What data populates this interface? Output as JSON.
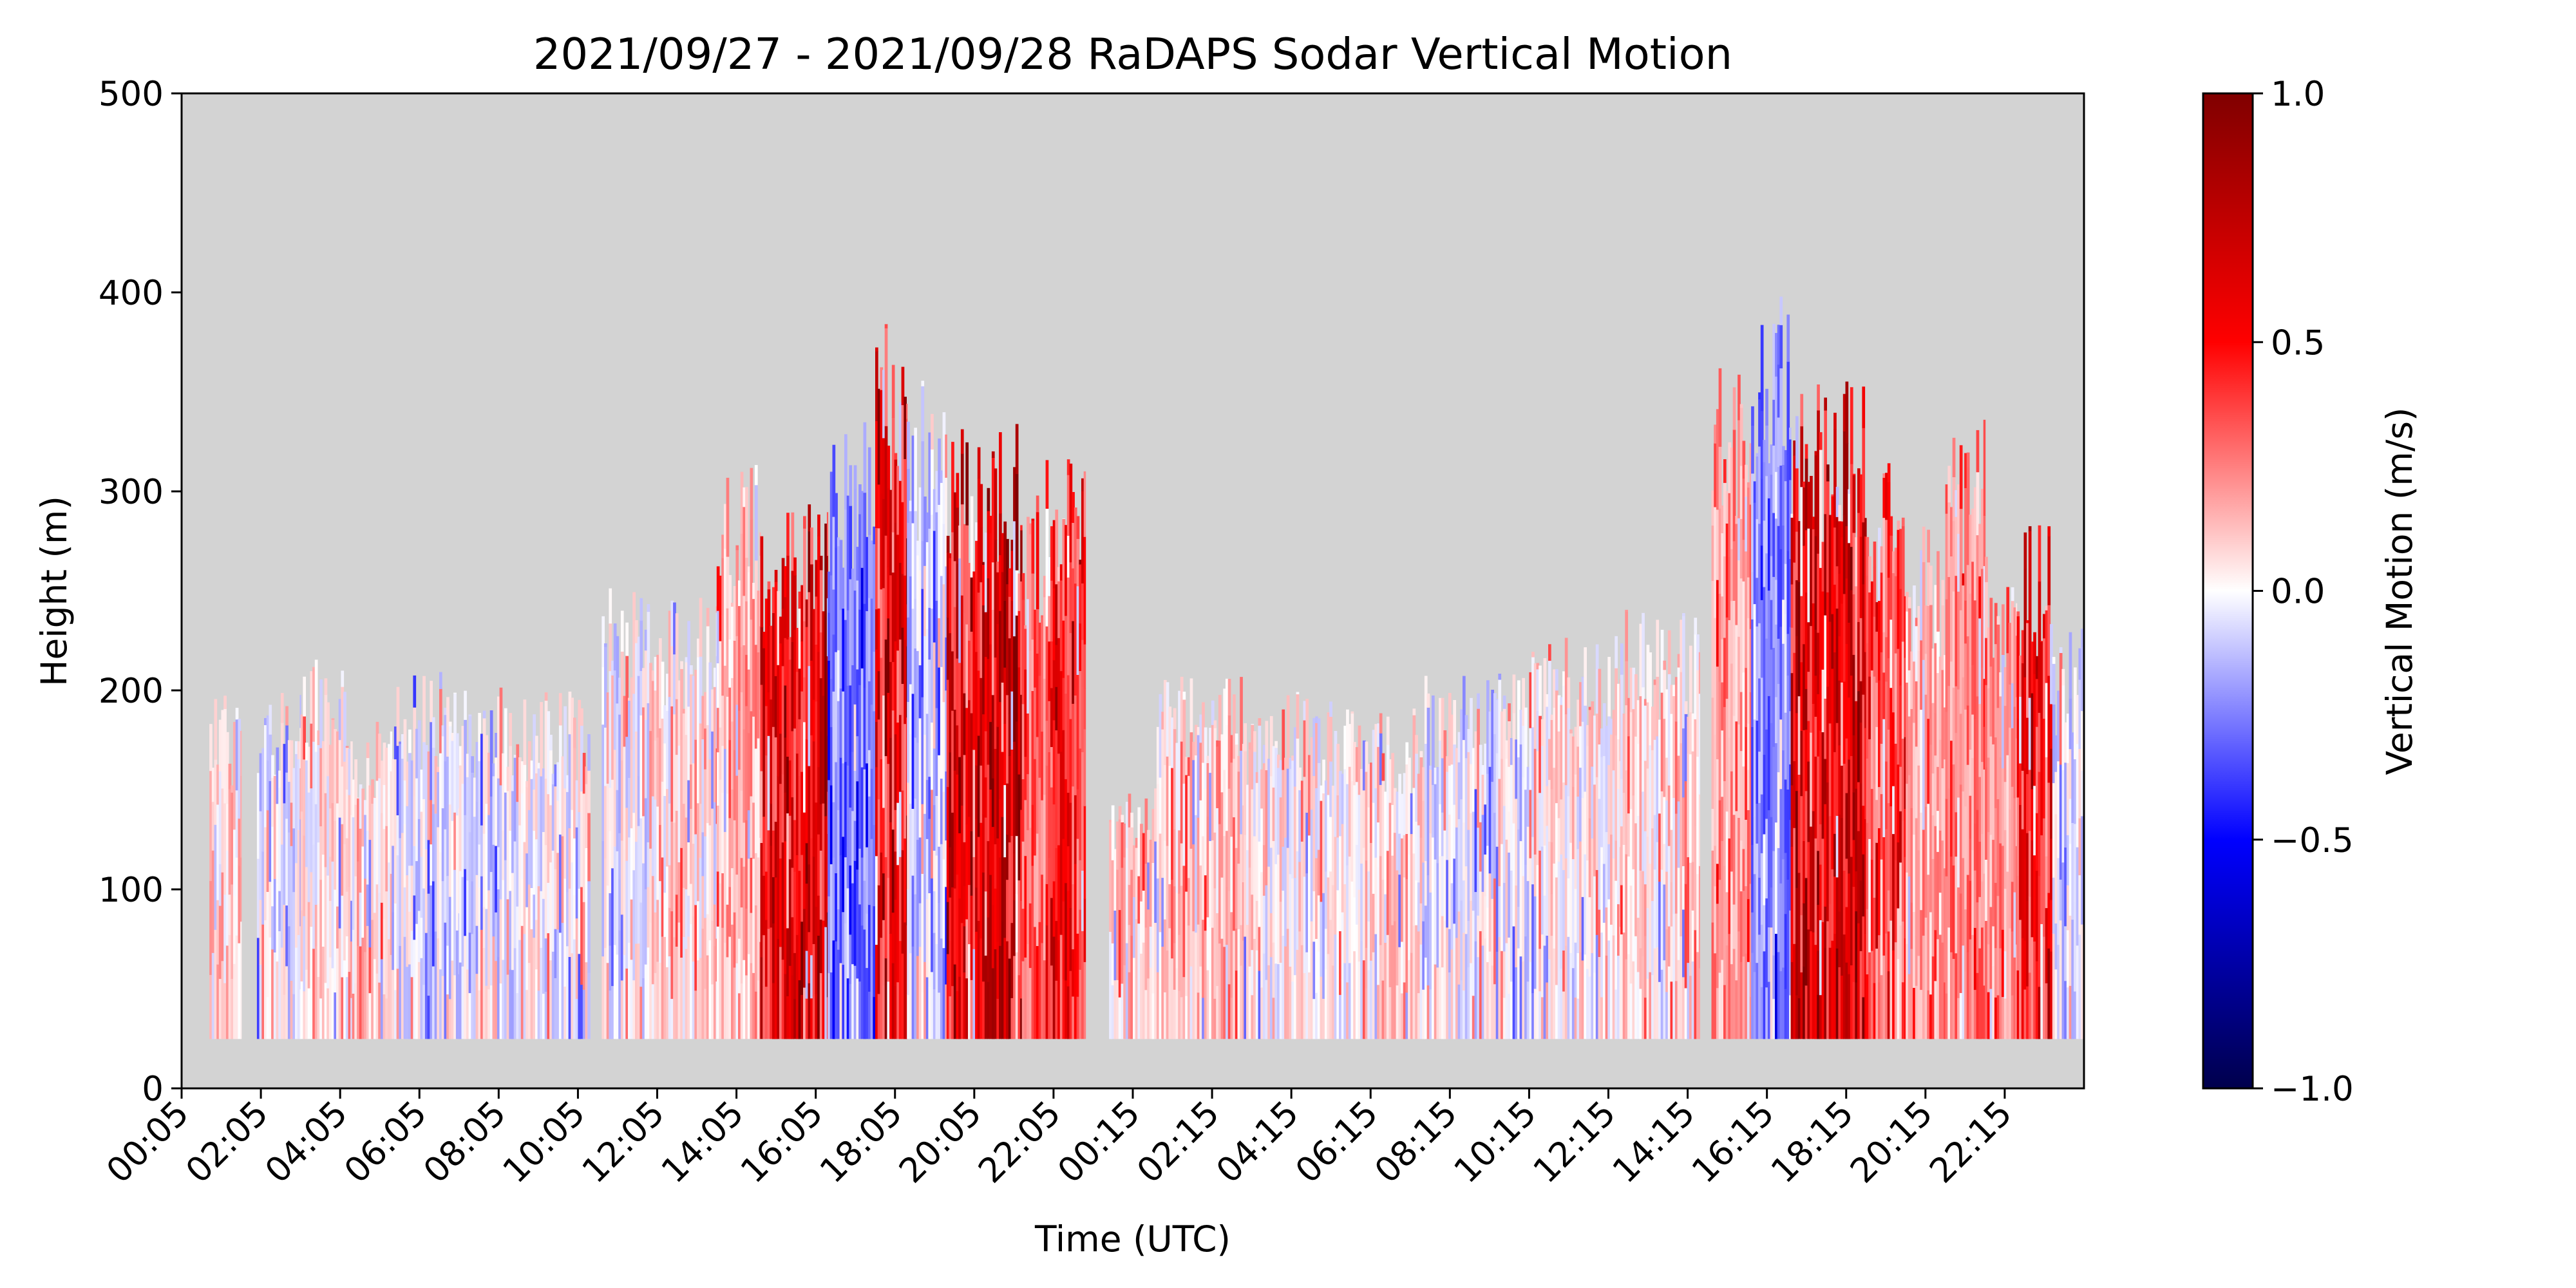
{
  "chart_data": {
    "type": "heatmap",
    "title": "2021/09/27 - 2021/09/28 RaDAPS Sodar Vertical Motion",
    "xlabel": "Time (UTC)",
    "ylabel": "Height (m)",
    "ylim": [
      0,
      500
    ],
    "xlim_hours": [
      0,
      48
    ],
    "y_ticks": [
      0,
      100,
      200,
      300,
      400,
      500
    ],
    "x_tick_labels": [
      "00:05",
      "02:05",
      "04:05",
      "06:05",
      "08:05",
      "10:05",
      "12:05",
      "14:05",
      "16:05",
      "18:05",
      "20:05",
      "22:05",
      "00:15",
      "02:15",
      "04:15",
      "06:15",
      "08:15",
      "10:15",
      "12:15",
      "14:15",
      "16:15",
      "18:15",
      "20:15",
      "22:15"
    ],
    "colorbar": {
      "label": "Vertical Motion (m/s)",
      "range": [
        -1.0,
        1.0
      ],
      "ticks": [
        1.0,
        0.5,
        0.0,
        -0.5,
        -1.0
      ],
      "tick_labels": [
        "1.0",
        "0.5",
        "0.0",
        "−0.5",
        "−1.0"
      ],
      "colormap": "seismic"
    },
    "background_color": "#d3d3d3",
    "grid": false,
    "data_min_height": 25,
    "data_gaps_hours": [
      [
        1.5,
        1.9
      ],
      [
        10.3,
        10.6
      ],
      [
        22.8,
        23.4
      ],
      [
        38.3,
        38.6
      ]
    ],
    "segments": [
      {
        "start": 0.7,
        "end": 1.5,
        "top": 190,
        "mean": 0.1
      },
      {
        "start": 1.9,
        "end": 3.0,
        "top": 190,
        "mean": -0.05
      },
      {
        "start": 3.0,
        "end": 4.3,
        "top": 210,
        "mean": 0.05
      },
      {
        "start": 4.3,
        "end": 5.3,
        "top": 180,
        "mean": 0.08
      },
      {
        "start": 5.3,
        "end": 7.0,
        "top": 200,
        "mean": -0.05
      },
      {
        "start": 7.0,
        "end": 8.5,
        "top": 195,
        "mean": -0.05
      },
      {
        "start": 8.5,
        "end": 10.3,
        "top": 190,
        "mean": 0.0
      },
      {
        "start": 10.6,
        "end": 11.8,
        "top": 240,
        "mean": -0.03
      },
      {
        "start": 11.8,
        "end": 13.5,
        "top": 235,
        "mean": 0.05
      },
      {
        "start": 13.5,
        "end": 14.6,
        "top": 300,
        "mean": 0.15
      },
      {
        "start": 14.6,
        "end": 16.3,
        "top": 280,
        "mean": 0.55
      },
      {
        "start": 16.3,
        "end": 17.5,
        "top": 320,
        "mean": -0.25
      },
      {
        "start": 17.5,
        "end": 18.3,
        "top": 370,
        "mean": 0.5
      },
      {
        "start": 18.3,
        "end": 19.3,
        "top": 340,
        "mean": -0.1
      },
      {
        "start": 19.3,
        "end": 21.2,
        "top": 320,
        "mean": 0.6
      },
      {
        "start": 21.2,
        "end": 21.8,
        "top": 290,
        "mean": 0.3
      },
      {
        "start": 21.8,
        "end": 22.8,
        "top": 320,
        "mean": 0.45
      },
      {
        "start": 23.4,
        "end": 24.6,
        "top": 150,
        "mean": 0.1
      },
      {
        "start": 24.6,
        "end": 26.8,
        "top": 200,
        "mean": 0.1
      },
      {
        "start": 26.8,
        "end": 29.5,
        "top": 190,
        "mean": 0.02
      },
      {
        "start": 29.5,
        "end": 31.3,
        "top": 185,
        "mean": 0.05
      },
      {
        "start": 31.3,
        "end": 34.0,
        "top": 200,
        "mean": -0.03
      },
      {
        "start": 34.0,
        "end": 36.3,
        "top": 220,
        "mean": 0.04
      },
      {
        "start": 36.3,
        "end": 38.3,
        "top": 230,
        "mean": 0.07
      },
      {
        "start": 38.6,
        "end": 39.6,
        "top": 350,
        "mean": 0.2
      },
      {
        "start": 39.6,
        "end": 40.6,
        "top": 380,
        "mean": -0.25
      },
      {
        "start": 40.6,
        "end": 42.5,
        "top": 340,
        "mean": 0.6
      },
      {
        "start": 42.5,
        "end": 43.5,
        "top": 300,
        "mean": 0.35
      },
      {
        "start": 43.5,
        "end": 44.5,
        "top": 270,
        "mean": 0.15
      },
      {
        "start": 44.5,
        "end": 45.5,
        "top": 320,
        "mean": 0.25
      },
      {
        "start": 45.5,
        "end": 46.3,
        "top": 260,
        "mean": 0.2
      },
      {
        "start": 46.3,
        "end": 47.2,
        "top": 270,
        "mean": 0.45
      },
      {
        "start": 47.2,
        "end": 48.0,
        "top": 220,
        "mean": -0.05
      }
    ]
  }
}
